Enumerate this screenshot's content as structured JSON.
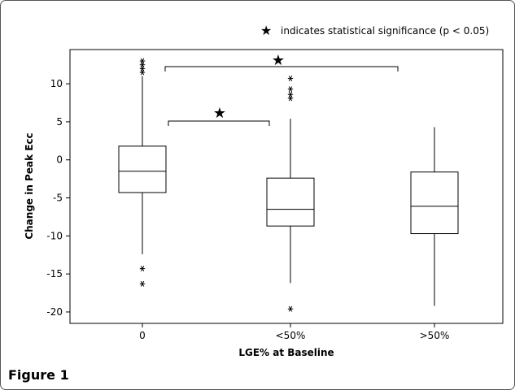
{
  "figure_label": "Figure 1",
  "chart_data": {
    "type": "boxplot",
    "xlabel": "LGE% at Baseline",
    "ylabel": "Change in Peak Ecc",
    "ylim": [
      -21.5,
      14.5
    ],
    "yticks": [
      10,
      5,
      0,
      -5,
      -10,
      -15,
      -20
    ],
    "ytick_labels": [
      "10",
      "5",
      "0",
      "-5",
      "-10",
      "-15",
      "-20"
    ],
    "categories": [
      "0",
      "<50%",
      ">50%"
    ],
    "boxes": [
      {
        "category": "0",
        "whisker_low": -12.4,
        "q1": -4.3,
        "median": -1.5,
        "q3": 1.8,
        "whisker_high": 11.0,
        "outliers": [
          13.0,
          12.5,
          12.0,
          11.5,
          -14.3,
          -16.3
        ]
      },
      {
        "category": "<50%",
        "whisker_low": -16.2,
        "q1": -8.7,
        "median": -6.5,
        "q3": -2.4,
        "whisker_high": 5.4,
        "outliers": [
          10.7,
          9.3,
          8.6,
          8.1,
          -19.6
        ]
      },
      {
        "category": ">50%",
        "whisker_low": -19.2,
        "q1": -9.7,
        "median": -6.1,
        "q3": -1.6,
        "whisker_high": 4.3,
        "outliers": []
      }
    ],
    "significance": [
      {
        "from": "0",
        "to": "<50%",
        "marker": "★"
      },
      {
        "from": "0",
        "to": ">50%",
        "marker": "★"
      }
    ],
    "legend_note": {
      "marker": "★",
      "text": "indicates statistical significance (p < 0.05)"
    },
    "colors": {
      "stroke": "#000000",
      "background": "#ffffff",
      "frame": "#555555"
    }
  }
}
